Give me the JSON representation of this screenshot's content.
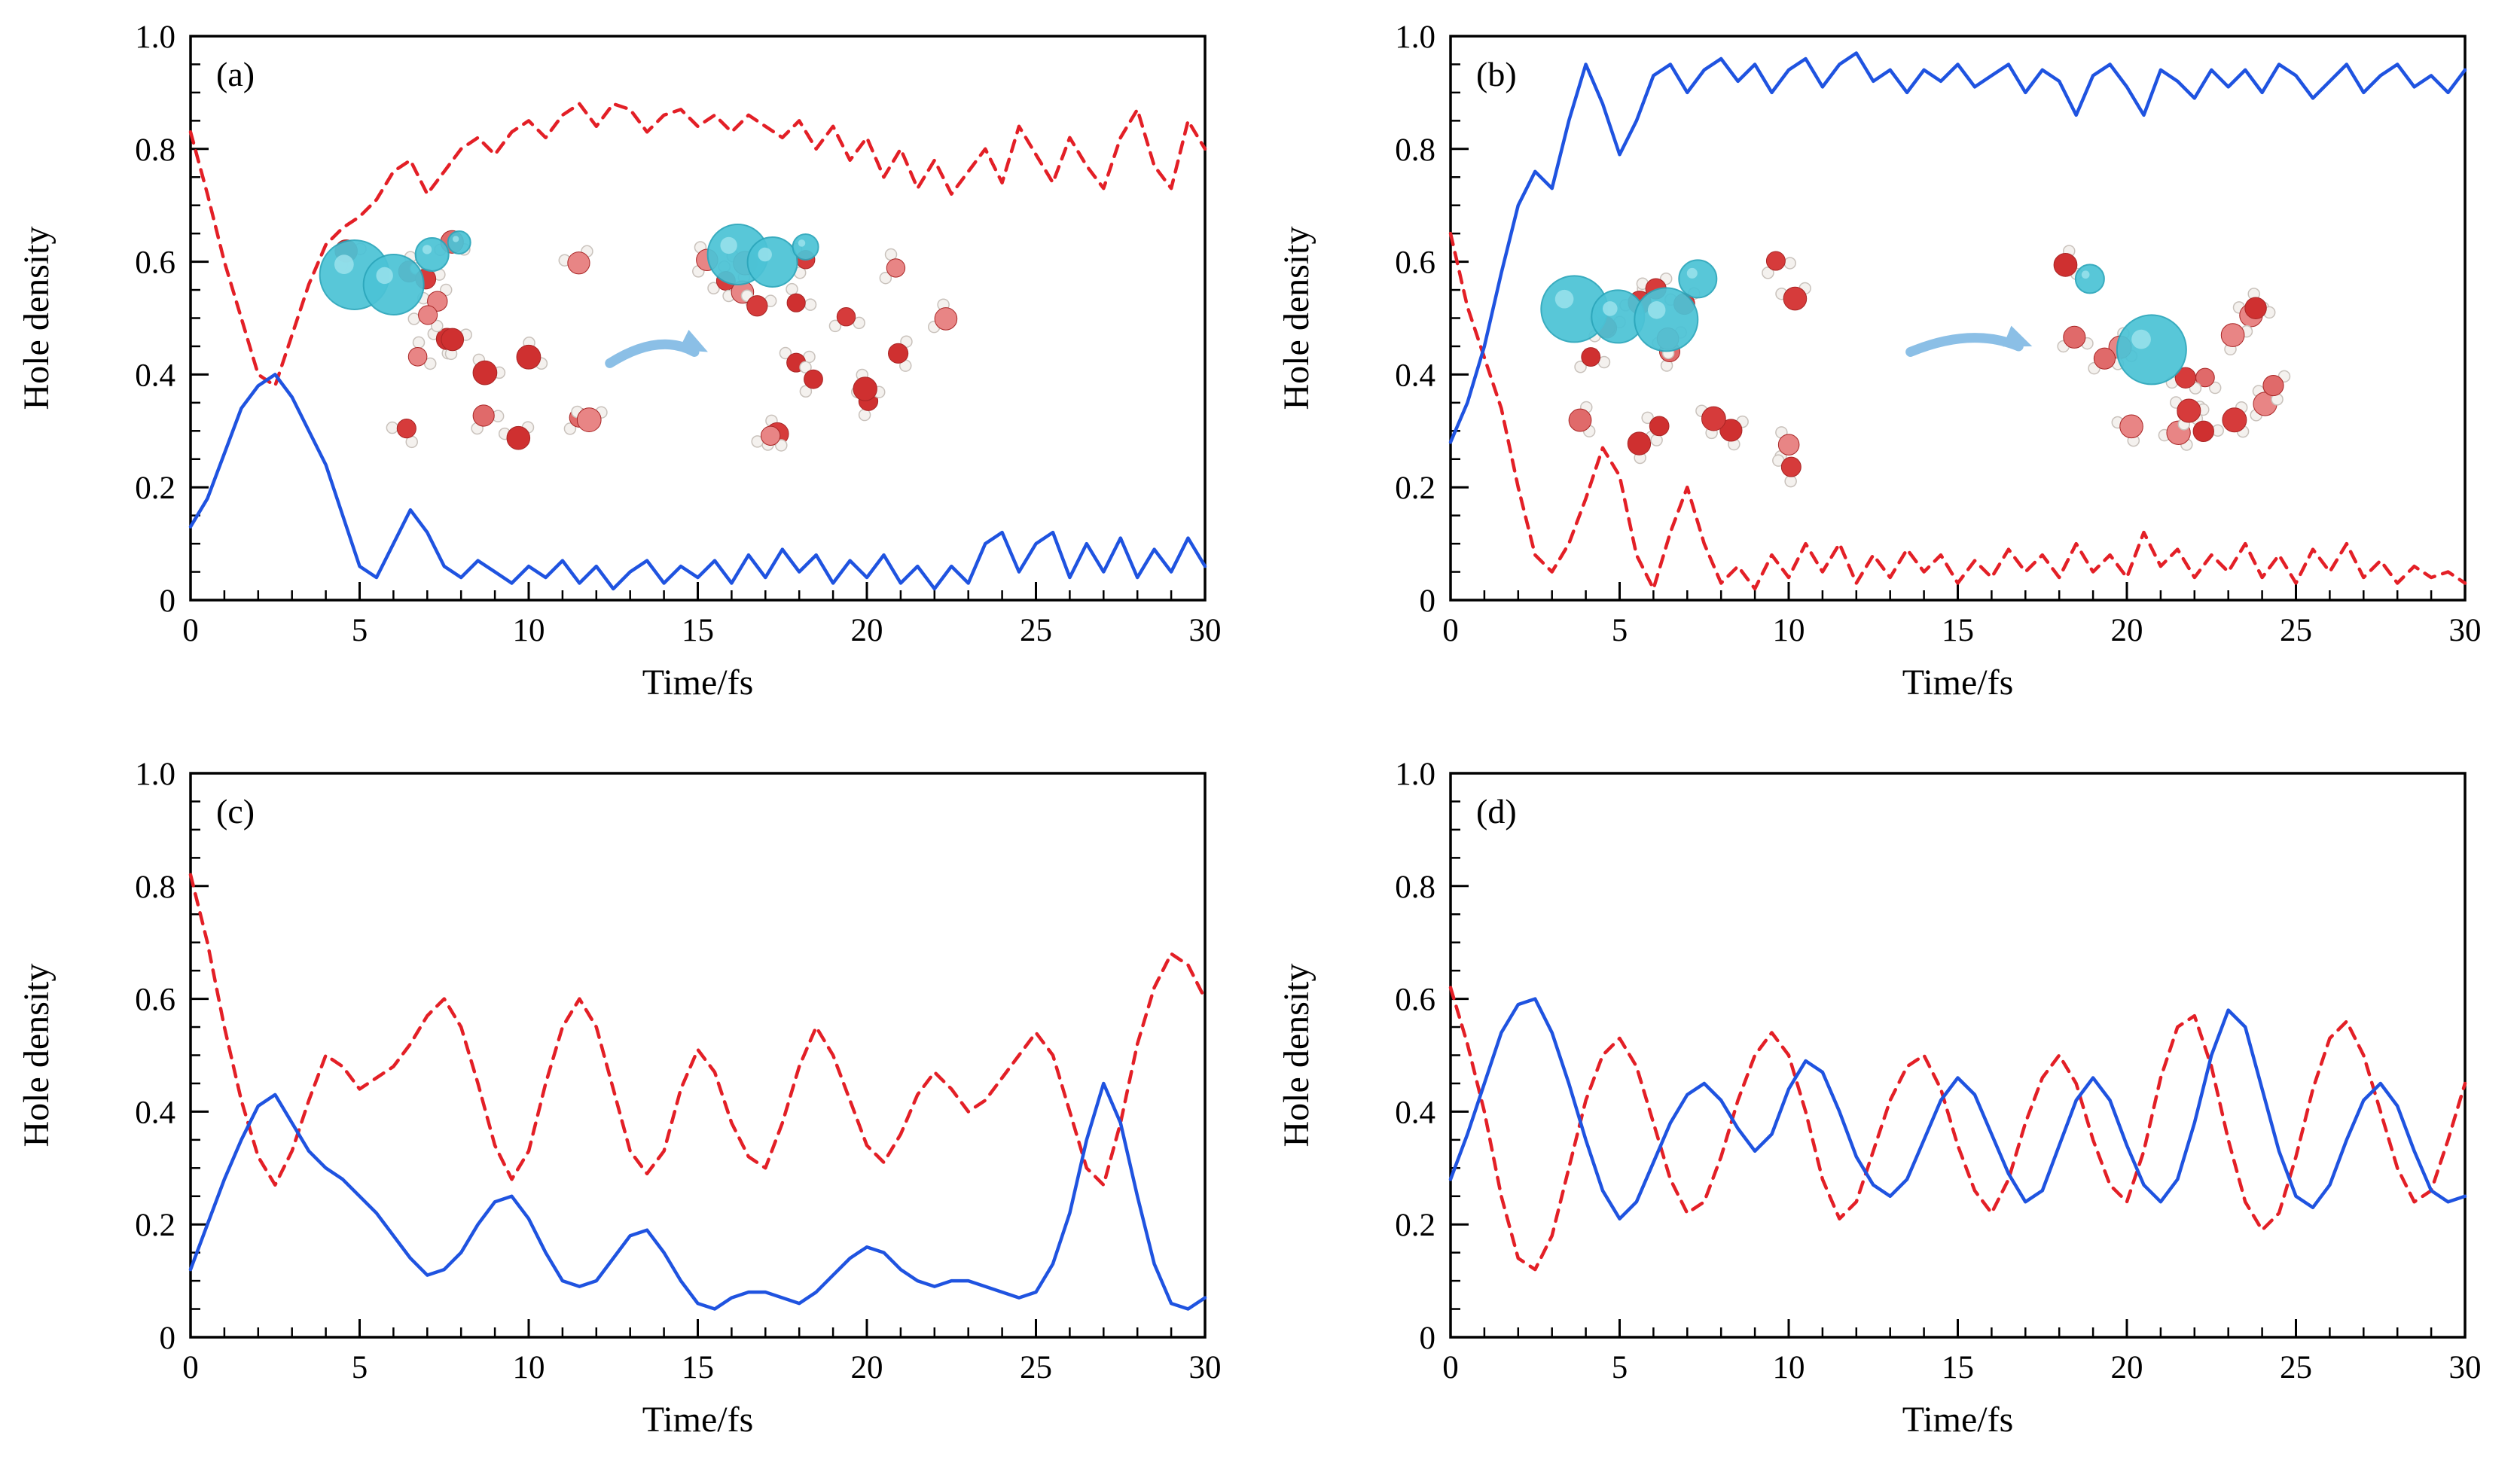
{
  "page": {
    "background": "#ffffff"
  },
  "colors": {
    "donor_red": "#e31f26",
    "acceptor_blue": "#1f53e0",
    "axis": "#000000",
    "arrow_blue": "#8bbfe6",
    "hole_cyan": "#4cc3d6",
    "oxygen_red": "#d63b3b",
    "hydrogen_white": "#f4f1ee"
  },
  "chart_data": [
    {
      "type": "line",
      "panel_label": "(a)",
      "xlabel": "Time/fs",
      "ylabel": "Hole density",
      "xlim": [
        0,
        30
      ],
      "ylim": [
        0,
        1.0
      ],
      "xticks": [
        0,
        5,
        10,
        15,
        20,
        25,
        30
      ],
      "yticks": [
        0,
        0.2,
        0.4,
        0.6,
        0.8,
        1.0
      ],
      "ytick_labels": [
        "0",
        "0.2",
        "0.4",
        "0.6",
        "0.8",
        "1.0"
      ],
      "grid": false,
      "legend": "none",
      "inset": {
        "present": true,
        "description": "water-cluster hole isosurface before and after transfer",
        "arrow": "right"
      },
      "x": [
        0,
        0.5,
        1,
        1.5,
        2,
        2.5,
        3,
        3.5,
        4,
        4.5,
        5,
        5.5,
        6,
        6.5,
        7,
        7.5,
        8,
        8.5,
        9,
        9.5,
        10,
        10.5,
        11,
        11.5,
        12,
        12.5,
        13,
        13.5,
        14,
        14.5,
        15,
        15.5,
        16,
        16.5,
        17,
        17.5,
        18,
        18.5,
        19,
        19.5,
        20,
        20.5,
        21,
        21.5,
        22,
        22.5,
        23,
        23.5,
        24,
        24.5,
        25,
        25.5,
        26,
        26.5,
        27,
        27.5,
        28,
        28.5,
        29,
        29.5,
        30
      ],
      "series": [
        {
          "name": "hole-density-red-dashed",
          "color": "#e31f26",
          "style": "dashed",
          "y": [
            0.83,
            0.72,
            0.6,
            0.5,
            0.4,
            0.38,
            0.47,
            0.56,
            0.63,
            0.66,
            0.68,
            0.71,
            0.76,
            0.78,
            0.72,
            0.76,
            0.8,
            0.82,
            0.79,
            0.83,
            0.85,
            0.82,
            0.86,
            0.88,
            0.84,
            0.88,
            0.87,
            0.83,
            0.86,
            0.87,
            0.84,
            0.86,
            0.83,
            0.86,
            0.84,
            0.82,
            0.85,
            0.8,
            0.84,
            0.78,
            0.82,
            0.75,
            0.8,
            0.73,
            0.78,
            0.72,
            0.76,
            0.8,
            0.74,
            0.84,
            0.79,
            0.74,
            0.82,
            0.77,
            0.73,
            0.82,
            0.87,
            0.77,
            0.73,
            0.85,
            0.8
          ]
        },
        {
          "name": "hole-density-blue-solid",
          "color": "#1f53e0",
          "style": "solid",
          "y": [
            0.13,
            0.18,
            0.26,
            0.34,
            0.38,
            0.4,
            0.36,
            0.3,
            0.24,
            0.15,
            0.06,
            0.04,
            0.1,
            0.16,
            0.12,
            0.06,
            0.04,
            0.07,
            0.05,
            0.03,
            0.06,
            0.04,
            0.07,
            0.03,
            0.06,
            0.02,
            0.05,
            0.07,
            0.03,
            0.06,
            0.04,
            0.07,
            0.03,
            0.08,
            0.04,
            0.09,
            0.05,
            0.08,
            0.03,
            0.07,
            0.04,
            0.08,
            0.03,
            0.06,
            0.02,
            0.06,
            0.03,
            0.1,
            0.12,
            0.05,
            0.1,
            0.12,
            0.04,
            0.1,
            0.05,
            0.11,
            0.04,
            0.09,
            0.05,
            0.11,
            0.06
          ]
        }
      ]
    },
    {
      "type": "line",
      "panel_label": "(b)",
      "xlabel": "Time/fs",
      "ylabel": "Hole density",
      "xlim": [
        0,
        30
      ],
      "ylim": [
        0,
        1.0
      ],
      "xticks": [
        0,
        5,
        10,
        15,
        20,
        25,
        30
      ],
      "yticks": [
        0,
        0.2,
        0.4,
        0.6,
        0.8,
        1.0
      ],
      "ytick_labels": [
        "0",
        "0.2",
        "0.4",
        "0.6",
        "0.8",
        "1.0"
      ],
      "grid": false,
      "legend": "none",
      "inset": {
        "present": true,
        "description": "water-cluster hole isosurface before and after transfer",
        "arrow": "right"
      },
      "x": [
        0,
        0.5,
        1,
        1.5,
        2,
        2.5,
        3,
        3.5,
        4,
        4.5,
        5,
        5.5,
        6,
        6.5,
        7,
        7.5,
        8,
        8.5,
        9,
        9.5,
        10,
        10.5,
        11,
        11.5,
        12,
        12.5,
        13,
        13.5,
        14,
        14.5,
        15,
        15.5,
        16,
        16.5,
        17,
        17.5,
        18,
        18.5,
        19,
        19.5,
        20,
        20.5,
        21,
        21.5,
        22,
        22.5,
        23,
        23.5,
        24,
        24.5,
        25,
        25.5,
        26,
        26.5,
        27,
        27.5,
        28,
        28.5,
        29,
        29.5,
        30
      ],
      "series": [
        {
          "name": "hole-density-red-dashed",
          "color": "#e31f26",
          "style": "dashed",
          "y": [
            0.65,
            0.52,
            0.43,
            0.34,
            0.2,
            0.08,
            0.05,
            0.1,
            0.18,
            0.27,
            0.22,
            0.08,
            0.02,
            0.12,
            0.2,
            0.1,
            0.03,
            0.06,
            0.02,
            0.08,
            0.04,
            0.1,
            0.05,
            0.1,
            0.03,
            0.08,
            0.04,
            0.09,
            0.05,
            0.08,
            0.03,
            0.07,
            0.04,
            0.09,
            0.05,
            0.08,
            0.04,
            0.1,
            0.05,
            0.08,
            0.04,
            0.12,
            0.06,
            0.09,
            0.04,
            0.08,
            0.05,
            0.1,
            0.04,
            0.08,
            0.03,
            0.09,
            0.05,
            0.1,
            0.04,
            0.07,
            0.03,
            0.06,
            0.04,
            0.05,
            0.03
          ]
        },
        {
          "name": "hole-density-blue-solid",
          "color": "#1f53e0",
          "style": "solid",
          "y": [
            0.28,
            0.35,
            0.45,
            0.58,
            0.7,
            0.76,
            0.73,
            0.85,
            0.95,
            0.88,
            0.79,
            0.85,
            0.93,
            0.95,
            0.9,
            0.94,
            0.96,
            0.92,
            0.95,
            0.9,
            0.94,
            0.96,
            0.91,
            0.95,
            0.97,
            0.92,
            0.94,
            0.9,
            0.94,
            0.92,
            0.95,
            0.91,
            0.93,
            0.95,
            0.9,
            0.94,
            0.92,
            0.86,
            0.93,
            0.95,
            0.91,
            0.86,
            0.94,
            0.92,
            0.89,
            0.94,
            0.91,
            0.94,
            0.9,
            0.95,
            0.93,
            0.89,
            0.92,
            0.95,
            0.9,
            0.93,
            0.95,
            0.91,
            0.93,
            0.9,
            0.94
          ]
        }
      ]
    },
    {
      "type": "line",
      "panel_label": "(c)",
      "xlabel": "Time/fs",
      "ylabel": "Hole density",
      "xlim": [
        0,
        30
      ],
      "ylim": [
        0,
        1.0
      ],
      "xticks": [
        0,
        5,
        10,
        15,
        20,
        25,
        30
      ],
      "yticks": [
        0,
        0.2,
        0.4,
        0.6,
        0.8,
        1.0
      ],
      "ytick_labels": [
        "0",
        "0.2",
        "0.4",
        "0.6",
        "0.8",
        "1.0"
      ],
      "grid": false,
      "legend": "none",
      "inset": {
        "present": false,
        "description": "",
        "arrow": ""
      },
      "x": [
        0,
        0.5,
        1,
        1.5,
        2,
        2.5,
        3,
        3.5,
        4,
        4.5,
        5,
        5.5,
        6,
        6.5,
        7,
        7.5,
        8,
        8.5,
        9,
        9.5,
        10,
        10.5,
        11,
        11.5,
        12,
        12.5,
        13,
        13.5,
        14,
        14.5,
        15,
        15.5,
        16,
        16.5,
        17,
        17.5,
        18,
        18.5,
        19,
        19.5,
        20,
        20.5,
        21,
        21.5,
        22,
        22.5,
        23,
        23.5,
        24,
        24.5,
        25,
        25.5,
        26,
        26.5,
        27,
        27.5,
        28,
        28.5,
        29,
        29.5,
        30
      ],
      "series": [
        {
          "name": "hole-density-red-dashed",
          "color": "#e31f26",
          "style": "dashed",
          "y": [
            0.82,
            0.7,
            0.55,
            0.42,
            0.32,
            0.27,
            0.33,
            0.42,
            0.5,
            0.48,
            0.44,
            0.46,
            0.48,
            0.52,
            0.57,
            0.6,
            0.55,
            0.45,
            0.34,
            0.28,
            0.33,
            0.45,
            0.55,
            0.6,
            0.55,
            0.44,
            0.33,
            0.29,
            0.33,
            0.44,
            0.51,
            0.47,
            0.38,
            0.32,
            0.3,
            0.38,
            0.48,
            0.55,
            0.5,
            0.42,
            0.34,
            0.31,
            0.36,
            0.43,
            0.47,
            0.44,
            0.4,
            0.42,
            0.46,
            0.5,
            0.54,
            0.5,
            0.4,
            0.3,
            0.27,
            0.38,
            0.52,
            0.62,
            0.68,
            0.66,
            0.6
          ]
        },
        {
          "name": "hole-density-blue-solid",
          "color": "#1f53e0",
          "style": "solid",
          "y": [
            0.12,
            0.2,
            0.28,
            0.35,
            0.41,
            0.43,
            0.38,
            0.33,
            0.3,
            0.28,
            0.25,
            0.22,
            0.18,
            0.14,
            0.11,
            0.12,
            0.15,
            0.2,
            0.24,
            0.25,
            0.21,
            0.15,
            0.1,
            0.09,
            0.1,
            0.14,
            0.18,
            0.19,
            0.15,
            0.1,
            0.06,
            0.05,
            0.07,
            0.08,
            0.08,
            0.07,
            0.06,
            0.08,
            0.11,
            0.14,
            0.16,
            0.15,
            0.12,
            0.1,
            0.09,
            0.1,
            0.1,
            0.09,
            0.08,
            0.07,
            0.08,
            0.13,
            0.22,
            0.35,
            0.45,
            0.38,
            0.25,
            0.13,
            0.06,
            0.05,
            0.07
          ]
        }
      ]
    },
    {
      "type": "line",
      "panel_label": "(d)",
      "xlabel": "Time/fs",
      "ylabel": "Hole density",
      "xlim": [
        0,
        30
      ],
      "ylim": [
        0,
        1.0
      ],
      "xticks": [
        0,
        5,
        10,
        15,
        20,
        25,
        30
      ],
      "yticks": [
        0,
        0.2,
        0.4,
        0.6,
        0.8,
        1.0
      ],
      "ytick_labels": [
        "0",
        "0.2",
        "0.4",
        "0.6",
        "0.8",
        "1.0"
      ],
      "grid": false,
      "legend": "none",
      "inset": {
        "present": false,
        "description": "",
        "arrow": ""
      },
      "x": [
        0,
        0.5,
        1,
        1.5,
        2,
        2.5,
        3,
        3.5,
        4,
        4.5,
        5,
        5.5,
        6,
        6.5,
        7,
        7.5,
        8,
        8.5,
        9,
        9.5,
        10,
        10.5,
        11,
        11.5,
        12,
        12.5,
        13,
        13.5,
        14,
        14.5,
        15,
        15.5,
        16,
        16.5,
        17,
        17.5,
        18,
        18.5,
        19,
        19.5,
        20,
        20.5,
        21,
        21.5,
        22,
        22.5,
        23,
        23.5,
        24,
        24.5,
        25,
        25.5,
        26,
        26.5,
        27,
        27.5,
        28,
        28.5,
        29,
        29.5,
        30
      ],
      "series": [
        {
          "name": "hole-density-red-dashed",
          "color": "#e31f26",
          "style": "dashed",
          "y": [
            0.62,
            0.52,
            0.4,
            0.25,
            0.14,
            0.12,
            0.18,
            0.3,
            0.42,
            0.5,
            0.53,
            0.48,
            0.38,
            0.28,
            0.22,
            0.24,
            0.32,
            0.42,
            0.5,
            0.54,
            0.5,
            0.4,
            0.28,
            0.21,
            0.24,
            0.33,
            0.42,
            0.48,
            0.5,
            0.44,
            0.34,
            0.26,
            0.22,
            0.28,
            0.38,
            0.46,
            0.5,
            0.45,
            0.35,
            0.27,
            0.24,
            0.33,
            0.46,
            0.55,
            0.57,
            0.48,
            0.35,
            0.24,
            0.19,
            0.22,
            0.32,
            0.44,
            0.53,
            0.56,
            0.5,
            0.4,
            0.3,
            0.24,
            0.26,
            0.35,
            0.45
          ]
        },
        {
          "name": "hole-density-blue-solid",
          "color": "#1f53e0",
          "style": "solid",
          "y": [
            0.28,
            0.36,
            0.45,
            0.54,
            0.59,
            0.6,
            0.54,
            0.45,
            0.35,
            0.26,
            0.21,
            0.24,
            0.31,
            0.38,
            0.43,
            0.45,
            0.42,
            0.37,
            0.33,
            0.36,
            0.44,
            0.49,
            0.47,
            0.4,
            0.32,
            0.27,
            0.25,
            0.28,
            0.35,
            0.42,
            0.46,
            0.43,
            0.36,
            0.29,
            0.24,
            0.26,
            0.34,
            0.42,
            0.46,
            0.42,
            0.34,
            0.27,
            0.24,
            0.28,
            0.38,
            0.5,
            0.58,
            0.55,
            0.44,
            0.33,
            0.25,
            0.23,
            0.27,
            0.35,
            0.42,
            0.45,
            0.41,
            0.33,
            0.26,
            0.24,
            0.25
          ]
        }
      ]
    }
  ]
}
